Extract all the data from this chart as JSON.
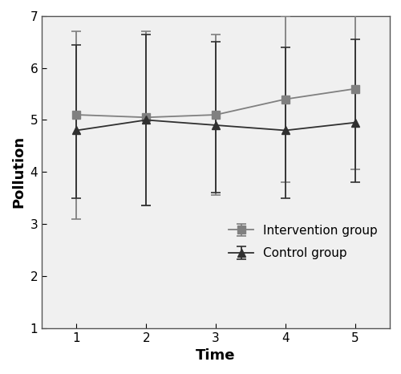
{
  "intervention_y": [
    5.1,
    5.05,
    5.1,
    5.4,
    5.6
  ],
  "intervention_err_up": [
    1.6,
    1.65,
    1.55,
    1.6,
    1.55
  ],
  "intervention_err_dn": [
    2.0,
    1.7,
    1.55,
    1.6,
    1.55
  ],
  "control_y": [
    4.8,
    5.0,
    4.9,
    4.8,
    4.95
  ],
  "control_err_up": [
    1.65,
    1.65,
    1.6,
    1.6,
    1.6
  ],
  "control_err_dn": [
    1.3,
    1.65,
    1.3,
    1.3,
    1.15
  ],
  "x": [
    1,
    2,
    3,
    4,
    5
  ],
  "xlabel": "Time",
  "ylabel": "Pollution",
  "ylim": [
    1,
    7
  ],
  "yticks": [
    1,
    2,
    3,
    4,
    5,
    6,
    7
  ],
  "xlim": [
    0.5,
    5.5
  ],
  "xticks": [
    1,
    2,
    3,
    4,
    5
  ],
  "intervention_color": "#808080",
  "control_color": "#303030",
  "legend_labels": [
    "Intervention group",
    "Control group"
  ],
  "background_color": "#ffffff",
  "plot_bg_color": "#f0f0f0"
}
